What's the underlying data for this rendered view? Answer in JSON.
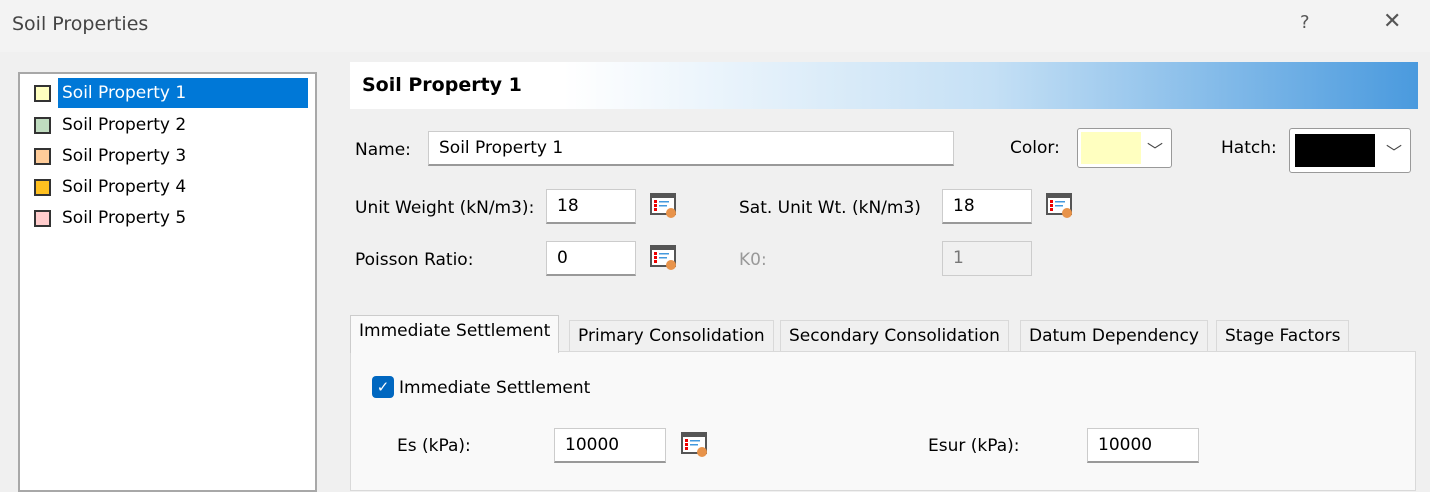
{
  "window": {
    "title": "Soil Properties",
    "help": "?",
    "close": "✕"
  },
  "list": {
    "items": [
      {
        "label": "Soil Property 1",
        "color": "#ffffc0",
        "selected": true
      },
      {
        "label": "Soil Property 2",
        "color": "#c0dcc0"
      },
      {
        "label": "Soil Property 3",
        "color": "#ffcc99"
      },
      {
        "label": "Soil Property 4",
        "color": "#ffc020"
      },
      {
        "label": "Soil Property 5",
        "color": "#ffcccc"
      }
    ]
  },
  "header": {
    "title": "Soil Property 1"
  },
  "form": {
    "name_label": "Name:",
    "name_value": "Soil Property 1",
    "color_label": "Color:",
    "color_value": "#ffffc0",
    "hatch_label": "Hatch:",
    "hatch_value": "#000000",
    "unit_weight_label": "Unit Weight (kN/m3):",
    "unit_weight_value": "18",
    "sat_unit_label": "Sat. Unit Wt. (kN/m3)",
    "sat_unit_value": "18",
    "poisson_label": "Poisson Ratio:",
    "poisson_value": "0",
    "k0_label": "K0:",
    "k0_value": "1"
  },
  "tabs": [
    "Immediate Settlement",
    "Primary Consolidation",
    "Secondary Consolidation",
    "Datum Dependency",
    "Stage Factors"
  ],
  "panel": {
    "checkbox_label": "Immediate Settlement",
    "checked": true,
    "es_label": "Es (kPa):",
    "es_value": "10000",
    "esur_label": "Esur (kPa):",
    "esur_value": "10000"
  }
}
